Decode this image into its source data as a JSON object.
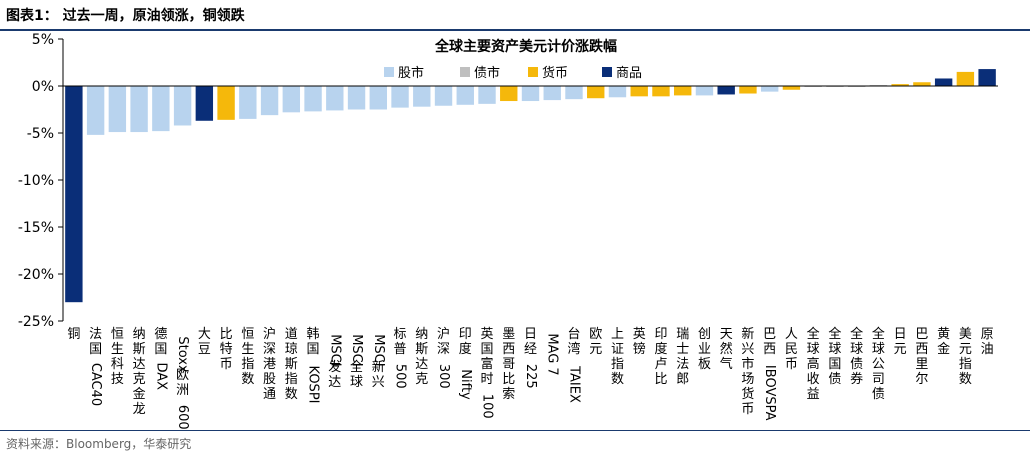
{
  "header": {
    "title": "图表1：  过去一周，原油领涨，铜领跌"
  },
  "footer": {
    "source": "资料来源：Bloomberg，华泰研究"
  },
  "colors": {
    "股市": "#b8d3ee",
    "债市": "#bfbfbf",
    "货币": "#f5b80b",
    "商品": "#0a2e78",
    "axis": "#000000",
    "rule": "#1a3a6e"
  },
  "chart_data": {
    "type": "bar",
    "title": "全球主要资产美元计价涨跌幅",
    "ylim": [
      -25,
      5
    ],
    "yticks": [
      5,
      0,
      -5,
      -10,
      -15,
      -20,
      -25
    ],
    "ytick_labels": [
      "5%",
      "0%",
      "-5%",
      "-10%",
      "-15%",
      "-20%",
      "-25%"
    ],
    "grid": false,
    "legend": [
      "股市",
      "债市",
      "货币",
      "商品"
    ],
    "legend_position": "top-center",
    "categories": [
      "铜",
      "法国CAC40",
      "恒生科技",
      "纳斯达克金龙",
      "德国DAX",
      "Stoxx欧洲600",
      "大豆",
      "比特币",
      "恒生指数",
      "沪深港股通",
      "道琼斯指数",
      "韩国KOSPI",
      "MSCI发达",
      "MSCI全球",
      "MSCI新兴",
      "标普500",
      "纳斯达克",
      "沪深300",
      "印度Nifty",
      "英国富时100",
      "墨西哥比索",
      "日经225",
      "MAG 7",
      "台湾TAIEX",
      "欧元",
      "上证指数",
      "英镑",
      "印度卢比",
      "瑞士法郎",
      "创业板",
      "天然气",
      "新兴市场货币",
      "巴西IBOVSPA",
      "人民币",
      "全球高收益",
      "全球国债",
      "全球债券",
      "全球公司债",
      "日元",
      "巴西里尔",
      "黄金",
      "美元指数",
      "原油"
    ],
    "values": [
      -23.0,
      -5.2,
      -4.9,
      -4.9,
      -4.8,
      -4.2,
      -3.7,
      -3.6,
      -3.5,
      -3.1,
      -2.8,
      -2.7,
      -2.6,
      -2.5,
      -2.5,
      -2.3,
      -2.2,
      -2.1,
      -2.0,
      -1.9,
      -1.6,
      -1.6,
      -1.5,
      -1.4,
      -1.3,
      -1.2,
      -1.1,
      -1.1,
      -1.0,
      -1.0,
      -0.9,
      -0.8,
      -0.6,
      -0.4,
      -0.1,
      -0.1,
      -0.1,
      0.1,
      0.2,
      0.4,
      0.8,
      1.5,
      1.8
    ],
    "groups": [
      "商品",
      "股市",
      "股市",
      "股市",
      "股市",
      "股市",
      "商品",
      "货币",
      "股市",
      "股市",
      "股市",
      "股市",
      "股市",
      "股市",
      "股市",
      "股市",
      "股市",
      "股市",
      "股市",
      "股市",
      "货币",
      "股市",
      "股市",
      "股市",
      "货币",
      "股市",
      "货币",
      "货币",
      "货币",
      "股市",
      "商品",
      "货币",
      "股市",
      "货币",
      "债市",
      "债市",
      "债市",
      "债市",
      "货币",
      "货币",
      "商品",
      "货币",
      "商品"
    ]
  }
}
